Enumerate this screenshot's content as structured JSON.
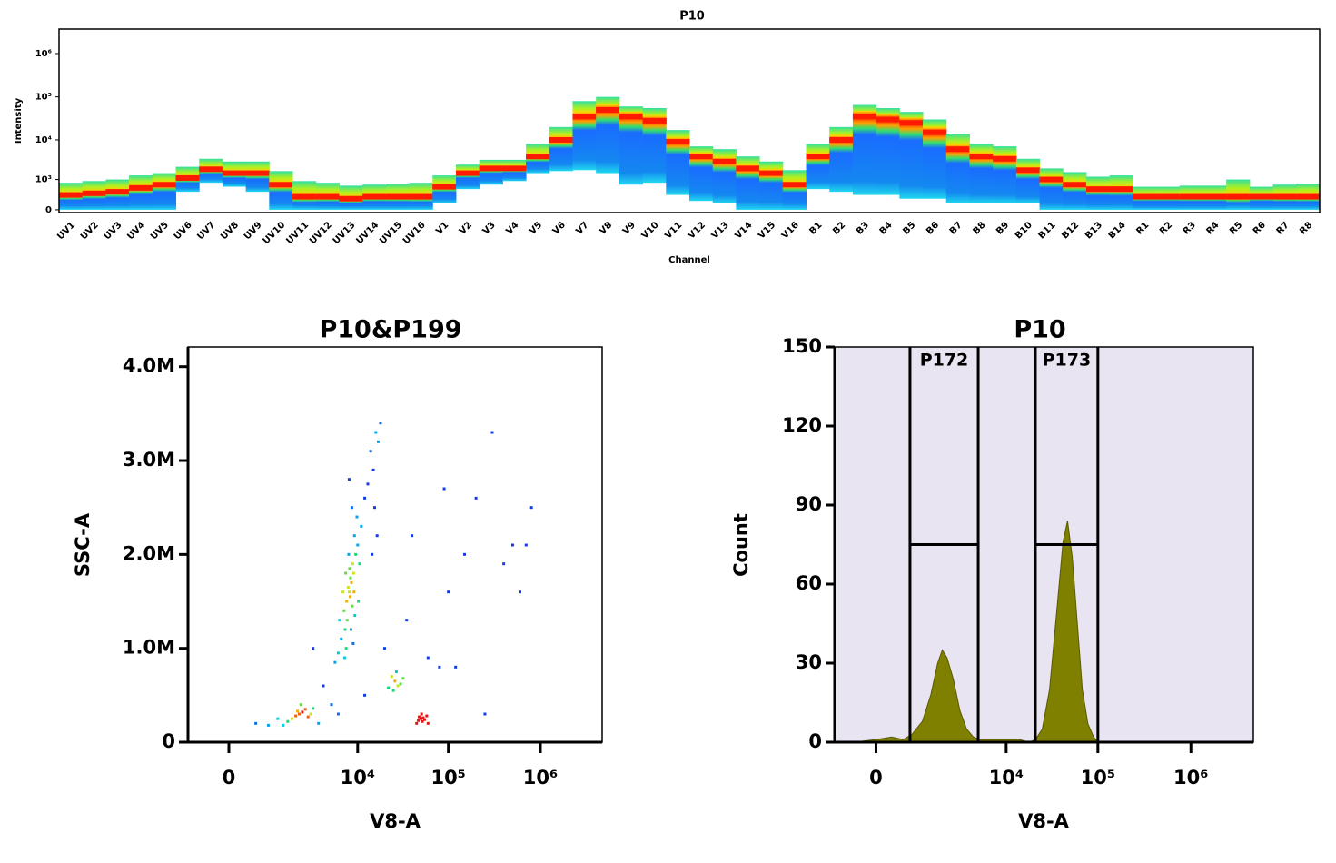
{
  "chart_data": [
    {
      "type": "spectrum",
      "title": "P10",
      "x_label": "Channel",
      "y_label": "Intensity",
      "yscale": "biexponential",
      "categories": [
        "UV1",
        "UV2",
        "UV3",
        "UV4",
        "UV5",
        "UV6",
        "UV7",
        "UV8",
        "UV9",
        "UV10",
        "UV11",
        "UV12",
        "UV13",
        "UV14",
        "UV15",
        "UV16",
        "V1",
        "V2",
        "V3",
        "V4",
        "V5",
        "V6",
        "V7",
        "V8",
        "V9",
        "V10",
        "V11",
        "V12",
        "V13",
        "V14",
        "V15",
        "V16",
        "B1",
        "B2",
        "B3",
        "B4",
        "B5",
        "B6",
        "B7",
        "B8",
        "B9",
        "B10",
        "B11",
        "B12",
        "B13",
        "B14",
        "R1",
        "R2",
        "R3",
        "R4",
        "R5",
        "R6",
        "R7",
        "R8"
      ],
      "values": [
        300,
        350,
        400,
        550,
        700,
        1100,
        1900,
        1500,
        1500,
        700,
        250,
        250,
        200,
        250,
        250,
        250,
        600,
        1500,
        2000,
        2000,
        4000,
        10000,
        35000,
        50000,
        35000,
        28000,
        9000,
        4000,
        3000,
        2000,
        1500,
        700,
        4000,
        10000,
        35000,
        30000,
        25000,
        15000,
        6000,
        4000,
        3500,
        1800,
        1000,
        700,
        500,
        500,
        250,
        250,
        250,
        250,
        250,
        250,
        250,
        250
      ],
      "upper": [
        800,
        900,
        1000,
        1300,
        1500,
        2200,
        3500,
        3000,
        3000,
        1700,
        900,
        800,
        650,
        700,
        750,
        800,
        1300,
        2500,
        3300,
        3300,
        8000,
        20000,
        80000,
        100000,
        60000,
        55000,
        17000,
        7000,
        6000,
        4000,
        3000,
        1800,
        8000,
        20000,
        65000,
        55000,
        45000,
        30000,
        14000,
        8000,
        7000,
        3500,
        2000,
        1600,
        1200,
        1300,
        600,
        600,
        650,
        650,
        1000,
        600,
        700,
        750
      ],
      "lower": [
        0,
        0,
        0,
        0,
        0,
        400,
        800,
        600,
        400,
        0,
        0,
        0,
        0,
        0,
        0,
        0,
        100,
        500,
        700,
        900,
        1500,
        1700,
        1800,
        1500,
        700,
        800,
        300,
        150,
        100,
        0,
        0,
        0,
        500,
        400,
        300,
        300,
        200,
        200,
        100,
        100,
        100,
        100,
        0,
        0,
        0,
        0,
        0,
        0,
        0,
        0,
        0,
        0,
        0,
        0
      ],
      "ylim": [
        -40,
        3670000
      ],
      "yticks": [
        {
          "value": 0,
          "label": "0"
        },
        {
          "value": 1000,
          "label": "10³"
        },
        {
          "value": 10000,
          "label": "10⁴"
        },
        {
          "value": 100000,
          "label": "10⁵"
        },
        {
          "value": 1000000,
          "label": "10⁶"
        }
      ]
    },
    {
      "type": "scatter",
      "title": "P10&P199",
      "x_label": "V8-A",
      "y_label": "SSC-A",
      "xscale": "biexponential",
      "yscale": "linear",
      "x": [
        8000,
        8500,
        7500,
        9000,
        8200,
        7800,
        8800,
        7000,
        9500,
        8300,
        7600,
        8700,
        9200,
        7200,
        8100,
        10000,
        6500,
        9800,
        7400,
        8600,
        11000,
        6800,
        9100,
        8400,
        7900,
        12000,
        6000,
        10500,
        8000,
        7300,
        9300,
        15000,
        6200,
        16000,
        14000,
        5500,
        8900,
        13000,
        7100,
        10200,
        18000,
        17000,
        15500,
        16500,
        14500,
        2000,
        2200,
        1800,
        2400,
        1600,
        2100,
        2600,
        1900,
        1400,
        2800,
        1200,
        3000,
        50000,
        52000,
        48000,
        55000,
        45000,
        58000,
        51000,
        47000,
        60000,
        53000,
        26000,
        28000,
        24000,
        30000,
        22000,
        27000,
        32000,
        25000,
        3000,
        4000,
        5000,
        12000,
        20000,
        35000,
        60000,
        80000,
        200000,
        300000,
        500000,
        700000,
        800000,
        400000,
        100000,
        150000,
        600000,
        250000,
        40000,
        90000,
        700,
        400,
        120000,
        1000,
        6000,
        3500
      ],
      "y": [
        1600000,
        1700000,
        1500000,
        1800000,
        1550000,
        1650000,
        1900000,
        1400000,
        2000000,
        1750000,
        1300000,
        1450000,
        2200000,
        1200000,
        1850000,
        2100000,
        1100000,
        2400000,
        1000000,
        2500000,
        2300000,
        1600000,
        1600000,
        1200000,
        2000000,
        2600000,
        950000,
        1900000,
        2800000,
        1800000,
        1350000,
        2900000,
        1300000,
        3300000,
        3100000,
        850000,
        1050000,
        2750000,
        900000,
        1500000,
        3400000,
        3200000,
        2500000,
        2200000,
        2000000,
        300000,
        320000,
        280000,
        350000,
        250000,
        400000,
        270000,
        330000,
        220000,
        300000,
        180000,
        360000,
        250000,
        220000,
        270000,
        240000,
        200000,
        280000,
        300000,
        230000,
        200000,
        260000,
        650000,
        600000,
        700000,
        620000,
        580000,
        750000,
        680000,
        550000,
        1000000,
        600000,
        400000,
        500000,
        1000000,
        1300000,
        900000,
        800000,
        2600000,
        3300000,
        2100000,
        2100000,
        2500000,
        1900000,
        1600000,
        2000000,
        1600000,
        300000,
        2200000,
        2700000,
        180000,
        200000,
        800000,
        250000,
        300000,
        200000
      ],
      "xlim": [
        -740,
        4680000
      ],
      "ylim": [
        0,
        4210000
      ],
      "xticks": [
        {
          "value": 0,
          "label": "0"
        },
        {
          "value": 10000,
          "label": "10⁴"
        },
        {
          "value": 100000,
          "label": "10⁵"
        },
        {
          "value": 1000000,
          "label": "10⁶"
        }
      ],
      "yticks": [
        0,
        {
          "value": 1000000,
          "label": "1.0M"
        },
        {
          "value": 2000000,
          "label": "2.0M"
        },
        {
          "value": 3000000,
          "label": "3.0M"
        },
        {
          "value": 4000000,
          "label": "4.0M"
        }
      ]
    },
    {
      "type": "histogram",
      "title": "P10",
      "x_label": "V8-A",
      "y_label": "Count",
      "xscale": "biexponential",
      "yscale": "linear",
      "color": "#7f7f00",
      "background": "#e9e4f2",
      "x": [
        -300,
        0,
        200,
        400,
        600,
        900,
        1200,
        1500,
        1730,
        2000,
        2400,
        2900,
        3500,
        4200,
        5000,
        7000,
        10000,
        14000,
        18000,
        21000,
        25000,
        30000,
        36000,
        42000,
        47000,
        53000,
        60000,
        68000,
        78000,
        90000,
        100000
      ],
      "values": [
        0,
        1,
        2,
        1,
        3,
        8,
        18,
        30,
        35,
        32,
        24,
        12,
        5,
        2,
        1,
        1,
        1,
        1,
        0,
        1,
        5,
        20,
        50,
        76,
        84,
        70,
        45,
        20,
        7,
        2,
        0
      ],
      "xlim": [
        -740,
        4680000
      ],
      "ylim": [
        0,
        150
      ],
      "xticks": [
        {
          "value": 0,
          "label": "0"
        },
        {
          "value": 10000,
          "label": "10⁴"
        },
        {
          "value": 100000,
          "label": "10⁵"
        },
        {
          "value": 1000000,
          "label": "10⁶"
        }
      ],
      "yticks": [
        0,
        30,
        60,
        90,
        120,
        150
      ],
      "gates": [
        {
          "label": "P172",
          "range": [
            550,
            4800
          ],
          "level": 75
        },
        {
          "label": "P173",
          "range": [
            21000,
            100000
          ],
          "level": 75
        }
      ]
    }
  ]
}
